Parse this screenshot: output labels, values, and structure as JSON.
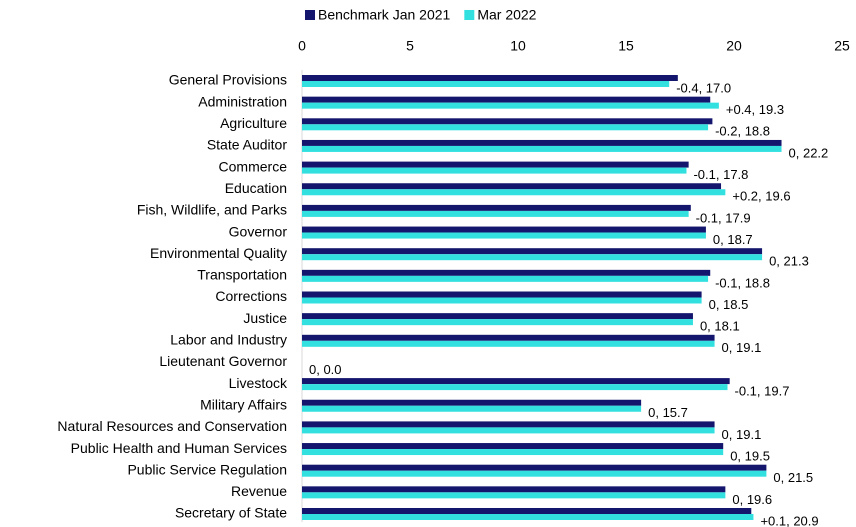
{
  "chart_data": {
    "type": "hbar",
    "categories": [
      "General Provisions",
      "Administration",
      "Agriculture",
      "State Auditor",
      "Commerce",
      "Education",
      "Fish, Wildlife, and Parks",
      "Governor",
      "Environmental Quality",
      "Transportation",
      "Corrections",
      "Justice",
      "Labor and Industry",
      "Lieutenant Governor",
      "Livestock",
      "Military Affairs",
      "Natural Resources and Conservation",
      "Public Health and Human Services",
      "Public Service Regulation",
      "Revenue",
      "Secretary of State"
    ],
    "series": [
      {
        "name": "Benchmark Jan 2021",
        "color": "#14166e",
        "values": [
          17.4,
          18.9,
          19.0,
          22.2,
          17.9,
          19.4,
          18.0,
          18.7,
          21.3,
          18.9,
          18.5,
          18.1,
          19.1,
          0,
          19.8,
          15.7,
          19.1,
          19.5,
          21.5,
          19.6,
          20.8
        ]
      },
      {
        "name": "Mar 2022",
        "color": "#33e0e0",
        "values": [
          17.0,
          19.3,
          18.8,
          22.2,
          17.8,
          19.6,
          17.9,
          18.7,
          21.3,
          18.8,
          18.5,
          18.1,
          19.1,
          0.0,
          19.7,
          15.7,
          19.1,
          19.5,
          21.5,
          19.6,
          20.9
        ],
        "value_labels": [
          "-0.4, 17.0",
          "+0.4, 19.3",
          "-0.2, 18.8",
          "0, 22.2",
          "-0.1, 17.8",
          "+0.2, 19.6",
          "-0.1, 17.9",
          "0, 18.7",
          "0, 21.3",
          "-0.1, 18.8",
          "0, 18.5",
          "0, 18.1",
          "0, 19.1",
          "0, 0.0",
          "-0.1, 19.7",
          "0, 15.7",
          "0, 19.1",
          "0, 19.5",
          "0, 21.5",
          "0, 19.6",
          "+0.1, 20.9"
        ]
      }
    ],
    "xlim": [
      0,
      25
    ],
    "xticks": [
      0,
      5,
      10,
      15,
      20,
      25
    ],
    "legend": "top"
  }
}
